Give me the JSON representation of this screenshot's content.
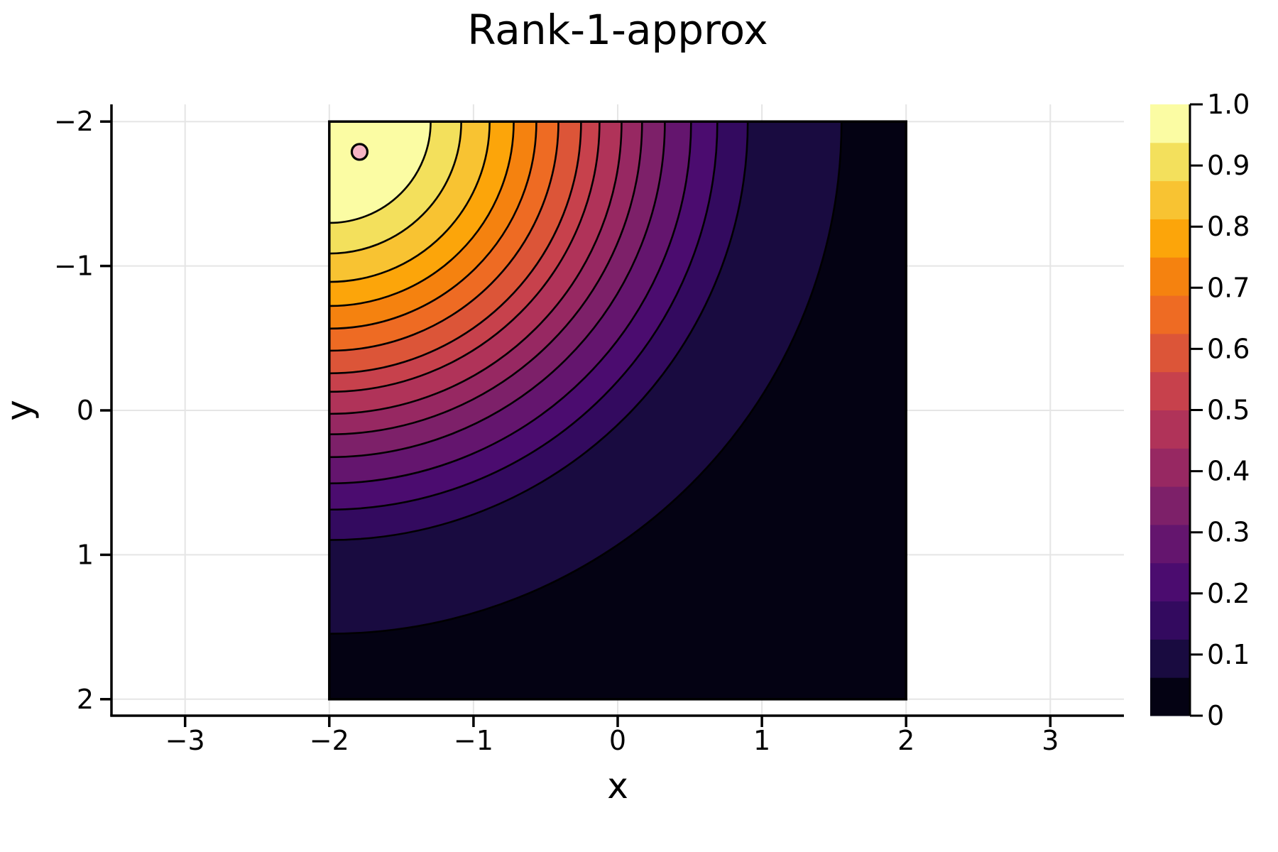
{
  "title": "Rank-1-approx",
  "x_axis": {
    "label": "x",
    "tick_values": [
      -3,
      -2,
      -1,
      0,
      1,
      2,
      3
    ],
    "tick_labels": [
      "−3",
      "−2",
      "−1",
      "0",
      "1",
      "2",
      "3"
    ],
    "range": [
      -3.51,
      3.51
    ]
  },
  "y_axis": {
    "label": "y",
    "tick_values": [
      -2,
      -1,
      0,
      1,
      2
    ],
    "tick_labels": [
      "−2",
      "−1",
      "0",
      "1",
      "2"
    ],
    "range": [
      -2.12,
      2.12
    ],
    "flipped": true
  },
  "colorbar": {
    "range": [
      0,
      1
    ],
    "tick_values": [
      0,
      0.1,
      0.2,
      0.3,
      0.4,
      0.5,
      0.6,
      0.7,
      0.8,
      0.9,
      1.0
    ],
    "tick_labels": [
      "0",
      "0.1",
      "0.2",
      "0.3",
      "0.4",
      "0.5",
      "0.6",
      "0.7",
      "0.8",
      "0.9",
      "1.0"
    ],
    "n_bands": 16,
    "band_colors": [
      "#040213",
      "#190B40",
      "#330A5F",
      "#4B0C6F",
      "#64156E",
      "#7D2069",
      "#972862",
      "#B03359",
      "#C7414C",
      "#DC5538",
      "#EE6B23",
      "#F5820F",
      "#FCA50A",
      "#F8C332",
      "#F3E05C",
      "#FBFCA3"
    ]
  },
  "chart_data": {
    "type": "contour",
    "title": "Rank-1-approx",
    "xlabel": "x",
    "ylabel": "y",
    "x_domain": [
      -2,
      2
    ],
    "y_domain": [
      -2,
      2
    ],
    "value_range": [
      0,
      1
    ],
    "grid": true,
    "legend_position": "colorbar-right",
    "peak": {
      "x": -2,
      "y": -2,
      "value": 1.0
    },
    "levels": [
      0.0625,
      0.125,
      0.1875,
      0.25,
      0.3125,
      0.375,
      0.4375,
      0.5,
      0.5625,
      0.625,
      0.6875,
      0.75,
      0.8125,
      0.875,
      0.9375
    ],
    "contours": [
      {
        "level": 0.9375,
        "radius": 0.703
      },
      {
        "level": 0.875,
        "radius": 0.915
      },
      {
        "level": 0.8125,
        "radius": 1.112
      },
      {
        "level": 0.75,
        "radius": 1.279
      },
      {
        "level": 0.6875,
        "radius": 1.436
      },
      {
        "level": 0.625,
        "radius": 1.589
      },
      {
        "level": 0.5625,
        "radius": 1.746
      },
      {
        "level": 0.5,
        "radius": 1.874
      },
      {
        "level": 0.4375,
        "radius": 2.027
      },
      {
        "level": 0.375,
        "radius": 2.169
      },
      {
        "level": 0.3125,
        "radius": 2.327
      },
      {
        "level": 0.25,
        "radius": 2.509
      },
      {
        "level": 0.1875,
        "radius": 2.691
      },
      {
        "level": 0.125,
        "radius": 2.902
      },
      {
        "level": 0.0625,
        "radius": 3.552
      }
    ],
    "marker": {
      "x": -1.79,
      "y": -1.79,
      "fill": "#F7B5C5",
      "stroke": "#000000"
    },
    "colors": {
      "background": "#FFFFFF",
      "grid": "#E5E5E5",
      "axis": "#000000",
      "contour_line": "#000000"
    }
  }
}
